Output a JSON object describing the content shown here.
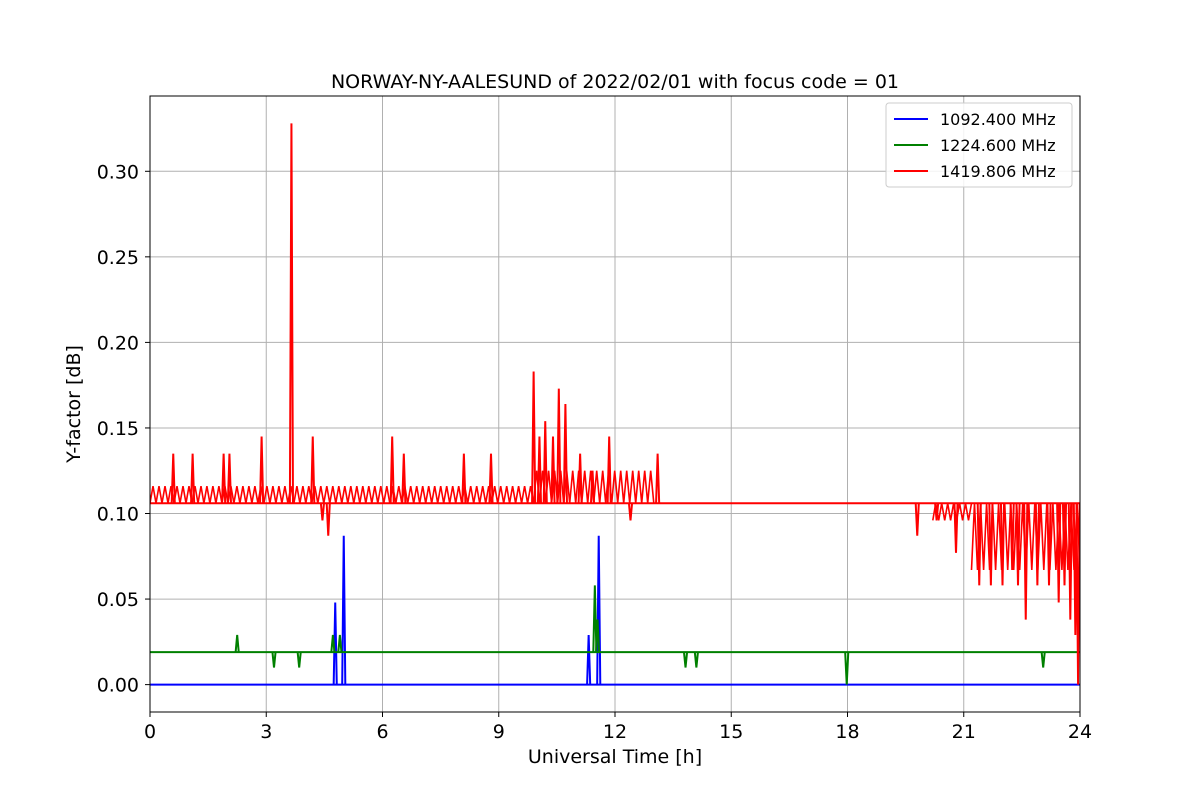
{
  "chart_data": {
    "type": "line",
    "title": "NORWAY-NY-AALESUND of 2022/02/01 with focus code = 01",
    "xlabel": "Universal Time [h]",
    "ylabel": "Y-factor [dB]",
    "xlim": [
      0,
      24
    ],
    "ylim": [
      -0.016,
      0.344
    ],
    "xticks": [
      0,
      3,
      6,
      9,
      12,
      15,
      18,
      21,
      24
    ],
    "xtick_labels": [
      "0",
      "3",
      "6",
      "9",
      "12",
      "15",
      "18",
      "21",
      "24"
    ],
    "yticks": [
      0.0,
      0.05,
      0.1,
      0.15,
      0.2,
      0.25,
      0.3
    ],
    "ytick_labels": [
      "0.00",
      "0.05",
      "0.10",
      "0.15",
      "0.20",
      "0.25",
      "0.30"
    ],
    "grid": true,
    "legend_position": "top-right",
    "series": [
      {
        "name": "1092.400 MHz",
        "color": "#0000ff",
        "baseline": 0.0,
        "spikes": [
          {
            "x": 4.78,
            "y": 0.048
          },
          {
            "x": 5.0,
            "y": 0.087
          },
          {
            "x": 11.32,
            "y": 0.029
          },
          {
            "x": 11.58,
            "y": 0.087
          }
        ]
      },
      {
        "name": "1224.600 MHz",
        "color": "#008000",
        "baseline": 0.019,
        "spikes": [
          {
            "x": 2.25,
            "y": 0.029
          },
          {
            "x": 3.2,
            "y": 0.01
          },
          {
            "x": 3.85,
            "y": 0.01
          },
          {
            "x": 4.72,
            "y": 0.029
          },
          {
            "x": 4.9,
            "y": 0.029
          },
          {
            "x": 11.48,
            "y": 0.058
          },
          {
            "x": 11.55,
            "y": 0.038
          },
          {
            "x": 13.82,
            "y": 0.01
          },
          {
            "x": 14.1,
            "y": 0.01
          },
          {
            "x": 17.98,
            "y": 0.0
          },
          {
            "x": 23.05,
            "y": 0.01
          }
        ]
      },
      {
        "name": "1419.806 MHz",
        "color": "#ff0000",
        "baseline": 0.106,
        "segments": [
          {
            "x_start": 0.0,
            "x_end": 9.9,
            "low": 0.106,
            "high": 0.116
          },
          {
            "x_start": 9.9,
            "x_end": 13.0,
            "low": 0.106,
            "high": 0.125
          },
          {
            "x_start": 20.2,
            "x_end": 21.2,
            "low": 0.096,
            "high": 0.106
          },
          {
            "x_start": 21.2,
            "x_end": 24.0,
            "low": 0.067,
            "high": 0.106
          }
        ],
        "spikes": [
          {
            "x": 0.6,
            "y": 0.135
          },
          {
            "x": 1.1,
            "y": 0.135
          },
          {
            "x": 1.9,
            "y": 0.135
          },
          {
            "x": 2.05,
            "y": 0.135
          },
          {
            "x": 2.88,
            "y": 0.145
          },
          {
            "x": 3.65,
            "y": 0.328
          },
          {
            "x": 4.2,
            "y": 0.145
          },
          {
            "x": 4.45,
            "y": 0.096
          },
          {
            "x": 4.6,
            "y": 0.087
          },
          {
            "x": 6.25,
            "y": 0.145
          },
          {
            "x": 6.55,
            "y": 0.135
          },
          {
            "x": 8.1,
            "y": 0.135
          },
          {
            "x": 8.8,
            "y": 0.135
          },
          {
            "x": 9.9,
            "y": 0.183
          },
          {
            "x": 10.05,
            "y": 0.145
          },
          {
            "x": 10.2,
            "y": 0.154
          },
          {
            "x": 10.4,
            "y": 0.145
          },
          {
            "x": 10.55,
            "y": 0.173
          },
          {
            "x": 10.72,
            "y": 0.164
          },
          {
            "x": 11.1,
            "y": 0.135
          },
          {
            "x": 11.42,
            "y": 0.125
          },
          {
            "x": 11.85,
            "y": 0.145
          },
          {
            "x": 12.4,
            "y": 0.096
          },
          {
            "x": 13.1,
            "y": 0.135
          },
          {
            "x": 19.8,
            "y": 0.087
          },
          {
            "x": 20.3,
            "y": 0.096
          },
          {
            "x": 20.8,
            "y": 0.077
          },
          {
            "x": 21.4,
            "y": 0.058
          },
          {
            "x": 21.7,
            "y": 0.058
          },
          {
            "x": 22.0,
            "y": 0.058
          },
          {
            "x": 22.25,
            "y": 0.067
          },
          {
            "x": 22.4,
            "y": 0.058
          },
          {
            "x": 22.6,
            "y": 0.038
          },
          {
            "x": 22.9,
            "y": 0.058
          },
          {
            "x": 23.2,
            "y": 0.058
          },
          {
            "x": 23.45,
            "y": 0.048
          },
          {
            "x": 23.6,
            "y": 0.058
          },
          {
            "x": 23.75,
            "y": 0.038
          },
          {
            "x": 23.88,
            "y": 0.029
          },
          {
            "x": 23.95,
            "y": 0.0
          }
        ]
      }
    ]
  }
}
